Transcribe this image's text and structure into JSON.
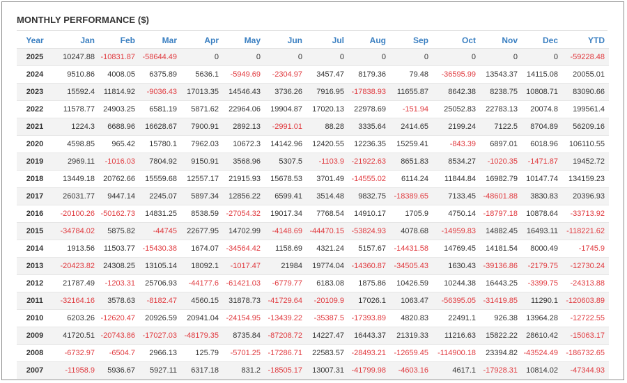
{
  "title": "MONTHLY PERFORMANCE ($)",
  "columns": [
    "Year",
    "Jan",
    "Feb",
    "Mar",
    "Apr",
    "May",
    "Jun",
    "Jul",
    "Aug",
    "Sep",
    "Oct",
    "Nov",
    "Dec",
    "YTD"
  ],
  "colors": {
    "header": "#3a7fc1",
    "negative": "#e0393e",
    "text": "#333333"
  },
  "rows": [
    [
      "2025",
      "10247.88",
      "-10831.87",
      "-58644.49",
      "0",
      "0",
      "0",
      "0",
      "0",
      "0",
      "0",
      "0",
      "0",
      "-59228.48"
    ],
    [
      "2024",
      "9510.86",
      "4008.05",
      "6375.89",
      "5636.1",
      "-5949.69",
      "-2304.97",
      "3457.47",
      "8179.36",
      "79.48",
      "-36595.99",
      "13543.37",
      "14115.08",
      "20055.01"
    ],
    [
      "2023",
      "15592.4",
      "11814.92",
      "-9036.43",
      "17013.35",
      "14546.43",
      "3736.26",
      "7916.95",
      "-17838.93",
      "11655.87",
      "8642.38",
      "8238.75",
      "10808.71",
      "83090.66"
    ],
    [
      "2022",
      "11578.77",
      "24903.25",
      "6581.19",
      "5871.62",
      "22964.06",
      "19904.87",
      "17020.13",
      "22978.69",
      "-151.94",
      "25052.83",
      "22783.13",
      "20074.8",
      "199561.4"
    ],
    [
      "2021",
      "1224.3",
      "6688.96",
      "16628.67",
      "7900.91",
      "2892.13",
      "-2991.01",
      "88.28",
      "3335.64",
      "2414.65",
      "2199.24",
      "7122.5",
      "8704.89",
      "56209.16"
    ],
    [
      "2020",
      "4598.85",
      "965.42",
      "15780.1",
      "7962.03",
      "10672.3",
      "14142.96",
      "12420.55",
      "12236.35",
      "15259.41",
      "-843.39",
      "6897.01",
      "6018.96",
      "106110.55"
    ],
    [
      "2019",
      "2969.11",
      "-1016.03",
      "7804.92",
      "9150.91",
      "3568.96",
      "5307.5",
      "-1103.9",
      "-21922.63",
      "8651.83",
      "8534.27",
      "-1020.35",
      "-1471.87",
      "19452.72"
    ],
    [
      "2018",
      "13449.18",
      "20762.66",
      "15559.68",
      "12557.17",
      "21915.93",
      "15678.53",
      "3701.49",
      "-14555.02",
      "6114.24",
      "11844.84",
      "16982.79",
      "10147.74",
      "134159.23"
    ],
    [
      "2017",
      "26031.77",
      "9447.14",
      "2245.07",
      "5897.34",
      "12856.22",
      "6599.41",
      "3514.48",
      "9832.75",
      "-18389.65",
      "7133.45",
      "-48601.88",
      "3830.83",
      "20396.93"
    ],
    [
      "2016",
      "-20100.26",
      "-50162.73",
      "14831.25",
      "8538.59",
      "-27054.32",
      "19017.34",
      "7768.54",
      "14910.17",
      "1705.9",
      "4750.14",
      "-18797.18",
      "10878.64",
      "-33713.92"
    ],
    [
      "2015",
      "-34784.02",
      "5875.82",
      "-44745",
      "22677.95",
      "14702.99",
      "-4148.69",
      "-44470.15",
      "-53824.93",
      "4078.68",
      "-14959.83",
      "14882.45",
      "16493.11",
      "-118221.62"
    ],
    [
      "2014",
      "1913.56",
      "11503.77",
      "-15430.38",
      "1674.07",
      "-34564.42",
      "1158.69",
      "4321.24",
      "5157.67",
      "-14431.58",
      "14769.45",
      "14181.54",
      "8000.49",
      "-1745.9"
    ],
    [
      "2013",
      "-20423.82",
      "24308.25",
      "13105.14",
      "18092.1",
      "-1017.47",
      "21984",
      "19774.04",
      "-14360.87",
      "-34505.43",
      "1630.43",
      "-39136.86",
      "-2179.75",
      "-12730.24"
    ],
    [
      "2012",
      "21787.49",
      "-1203.31",
      "25706.93",
      "-44177.6",
      "-61421.03",
      "-6779.77",
      "6183.08",
      "1875.86",
      "10426.59",
      "10244.38",
      "16443.25",
      "-3399.75",
      "-24313.88"
    ],
    [
      "2011",
      "-32164.16",
      "3578.63",
      "-8182.47",
      "4560.15",
      "31878.73",
      "-41729.64",
      "-20109.9",
      "17026.1",
      "1063.47",
      "-56395.05",
      "-31419.85",
      "11290.1",
      "-120603.89"
    ],
    [
      "2010",
      "6203.26",
      "-12620.47",
      "20926.59",
      "20941.04",
      "-24154.95",
      "-13439.22",
      "-35387.5",
      "-17393.89",
      "4820.83",
      "22491.1",
      "926.38",
      "13964.28",
      "-12722.55"
    ],
    [
      "2009",
      "41720.51",
      "-20743.86",
      "-17027.03",
      "-48179.35",
      "8735.84",
      "-87208.72",
      "14227.47",
      "16443.37",
      "21319.33",
      "11216.63",
      "15822.22",
      "28610.42",
      "-15063.17"
    ],
    [
      "2008",
      "-6732.97",
      "-6504.7",
      "2966.13",
      "125.79",
      "-5701.25",
      "-17286.71",
      "22583.57",
      "-28493.21",
      "-12659.45",
      "-114900.18",
      "23394.82",
      "-43524.49",
      "-186732.65"
    ],
    [
      "2007",
      "-11958.9",
      "5936.67",
      "5927.11",
      "6317.18",
      "831.2",
      "-18505.17",
      "13007.31",
      "-41799.98",
      "-4603.16",
      "4617.1",
      "-17928.31",
      "10814.02",
      "-47344.93"
    ]
  ]
}
